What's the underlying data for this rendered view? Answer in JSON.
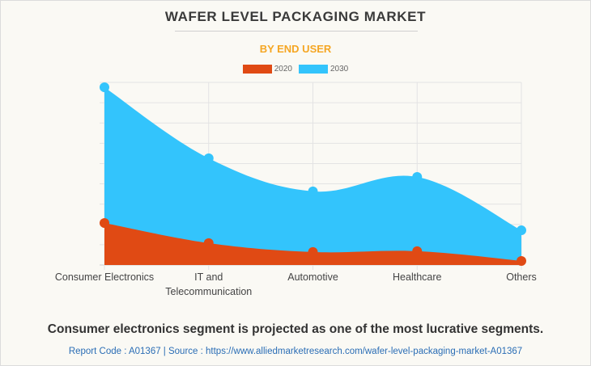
{
  "header": {
    "title": "WAFER LEVEL PACKAGING MARKET",
    "subtitle": "BY END USER"
  },
  "colors": {
    "series_2020": "#e04a14",
    "series_2030": "#33c4fc",
    "subtitle": "#f5a623",
    "source_link": "#2a6db5"
  },
  "chart_data": {
    "type": "area",
    "title": "WAFER LEVEL PACKAGING MARKET",
    "subtitle": "BY END USER",
    "xlabel": "",
    "ylabel": "",
    "categories": [
      "Consumer Electronics",
      "IT and Telecommunication",
      "Automotive",
      "Healthcare",
      "Others"
    ],
    "category_lines": [
      [
        "Consumer Electronics"
      ],
      [
        "IT and",
        "Telecommunication"
      ],
      [
        "Automotive"
      ],
      [
        "Healthcare"
      ],
      [
        "Others"
      ]
    ],
    "series": [
      {
        "name": "2030",
        "values": [
          8.76,
          5.26,
          3.63,
          4.34,
          1.71
        ]
      },
      {
        "name": "2020",
        "values": [
          2.07,
          1.08,
          0.64,
          0.68,
          0.2
        ]
      }
    ],
    "ylim": [
      0,
      9
    ],
    "y_gridlines": 9,
    "y_tick_labels_shown": false,
    "grid": true,
    "legend": [
      "2020",
      "2030"
    ],
    "legend_position": "top-center",
    "smooth": true
  },
  "footer": {
    "caption": "Consumer electronics segment is projected as one of the most lucrative segments.",
    "source": "Report Code : A01367  |  Source : https://www.alliedmarketresearch.com/wafer-level-packaging-market-A01367"
  }
}
